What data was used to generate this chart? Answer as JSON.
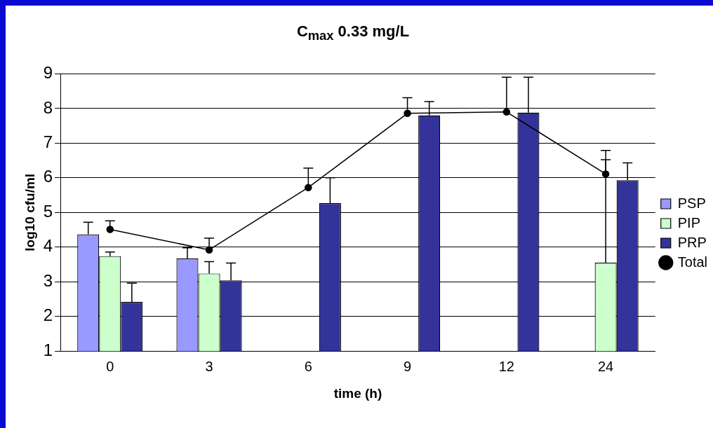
{
  "chart_data": {
    "type": "bar",
    "title": "C$_{max}$ 0.33 mg/L",
    "xlabel": "time (h)",
    "ylabel": "log10 cfu/ml",
    "categories": [
      "0",
      "3",
      "6",
      "9",
      "12",
      "24"
    ],
    "series": [
      {
        "name": "PSP",
        "color": "#9999ff",
        "values": [
          4.37,
          3.67,
          null,
          null,
          null,
          null
        ],
        "errors": [
          [
            4.37,
            4.72
          ],
          [
            3.67,
            3.98
          ],
          null,
          null,
          null,
          null
        ]
      },
      {
        "name": "PIP",
        "color": "#ccffcc",
        "values": [
          3.74,
          3.24,
          null,
          null,
          null,
          3.55
        ],
        "errors": [
          [
            3.74,
            3.86
          ],
          [
            3.24,
            3.58
          ],
          null,
          null,
          null,
          [
            3.55,
            6.52
          ]
        ]
      },
      {
        "name": "PRP",
        "color": "#333399",
        "values": [
          2.42,
          3.04,
          5.27,
          7.8,
          7.88,
          5.93
        ],
        "errors": [
          [
            2.42,
            2.96
          ],
          [
            3.04,
            3.54
          ],
          [
            5.27,
            6.0
          ],
          [
            7.8,
            8.2
          ],
          [
            7.88,
            8.9
          ],
          [
            5.93,
            6.43
          ]
        ]
      },
      {
        "name": "Total",
        "type": "line",
        "color": "#000000",
        "values": [
          4.51,
          3.92,
          5.72,
          7.86,
          7.9,
          6.11
        ],
        "errors": [
          [
            4.51,
            4.76
          ],
          [
            3.92,
            4.26
          ],
          [
            5.72,
            6.28
          ],
          [
            7.86,
            8.31
          ],
          [
            7.9,
            8.9
          ],
          [
            6.11,
            6.79
          ]
        ]
      }
    ],
    "ylim": [
      1,
      9
    ],
    "yticks": [
      1,
      2,
      3,
      4,
      5,
      6,
      7,
      8,
      9
    ],
    "grid": "y",
    "legend": "right",
    "marker": "circle",
    "line_style": "solid"
  }
}
